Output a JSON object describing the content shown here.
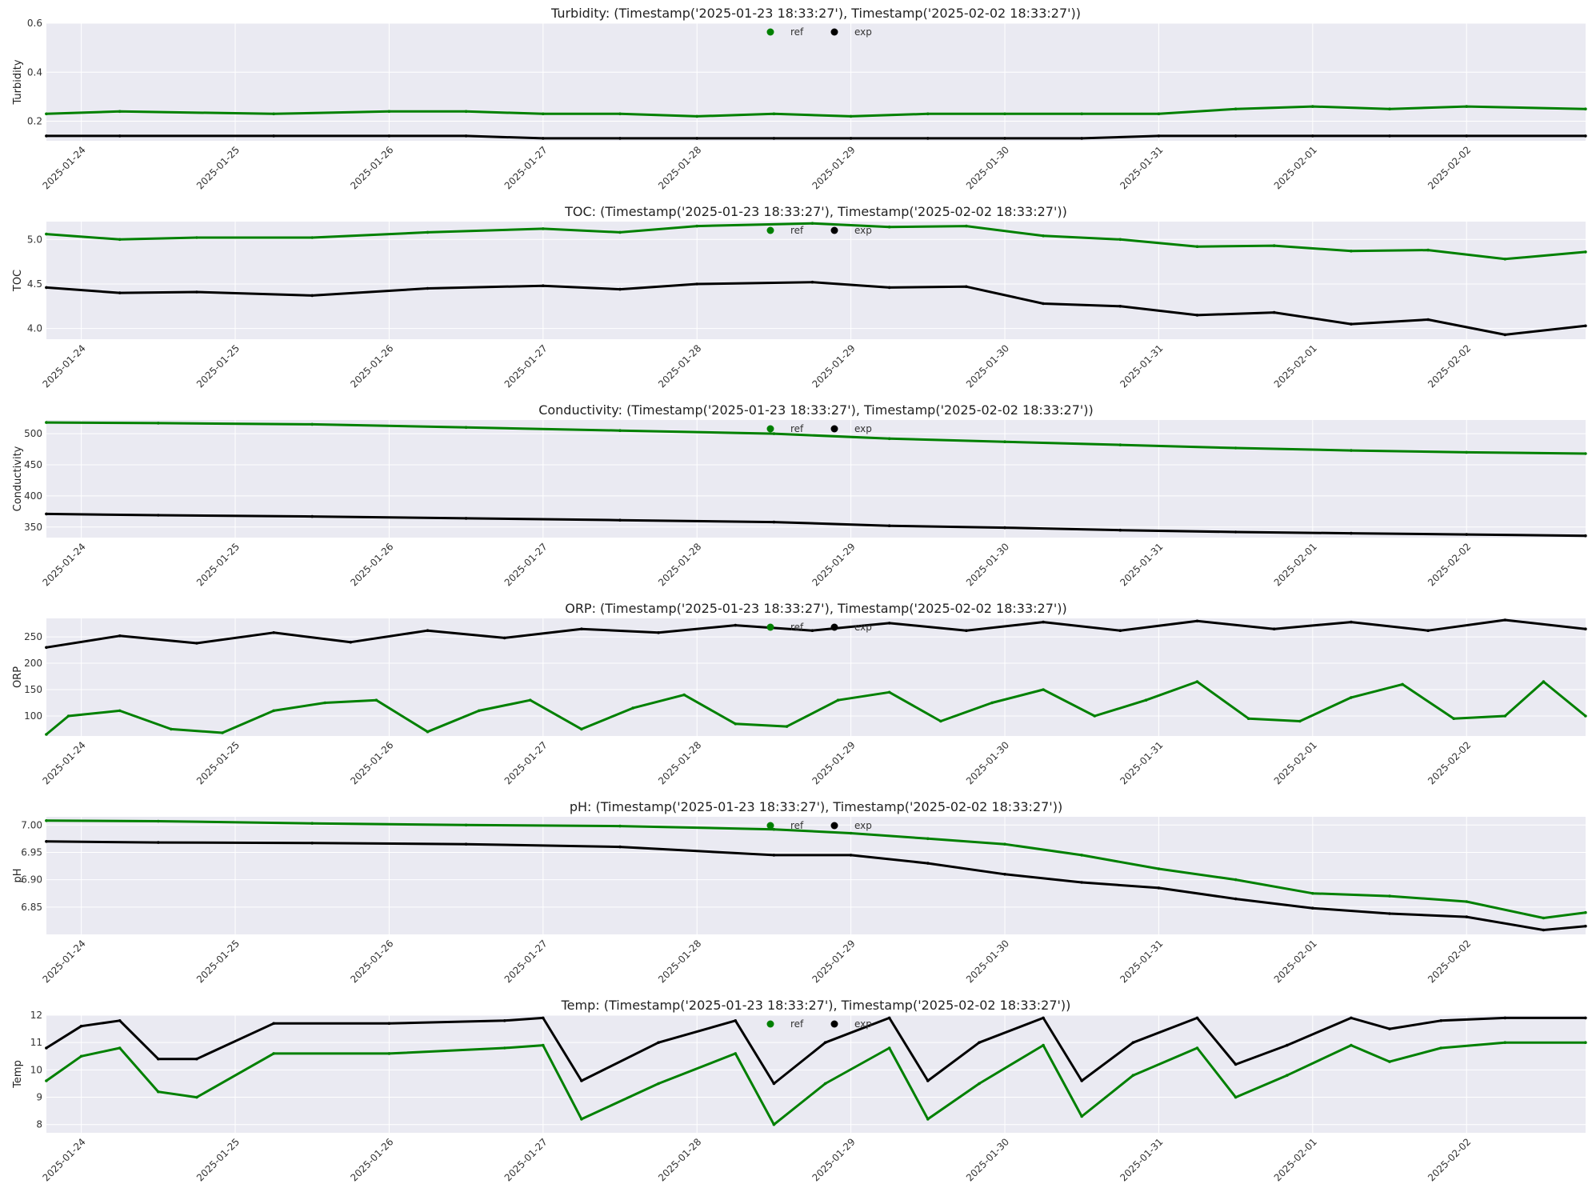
{
  "colors": {
    "ref": "#008000",
    "exp": "#000000",
    "plot_bg": "#eaeaf2",
    "grid": "#ffffff"
  },
  "x_ticks": [
    "2025-01-24",
    "2025-01-25",
    "2025-01-26",
    "2025-01-27",
    "2025-01-28",
    "2025-01-29",
    "2025-01-30",
    "2025-01-31",
    "2025-02-01",
    "2025-02-02"
  ],
  "chart_data": [
    {
      "type": "scatter",
      "title": "Turbidity: (Timestamp('2025-01-23 18:33:27'), Timestamp('2025-02-02 18:33:27'))",
      "ylabel": "Turbidity",
      "x_range": [
        "2025-01-23 18:33:27",
        "2025-02-02 18:33:27"
      ],
      "ylim": [
        0.12,
        0.6
      ],
      "yticks": [
        0.2,
        0.4,
        0.6
      ],
      "legend": "top-center",
      "series": [
        {
          "name": "ref",
          "x": [
            "2025-01-23 18:33",
            "2025-01-24 06:00",
            "2025-01-25 06:00",
            "2025-01-26 00:00",
            "2025-01-26 12:00",
            "2025-01-27 00:00",
            "2025-01-27 12:00",
            "2025-01-28 00:00",
            "2025-01-28 12:00",
            "2025-01-29 00:00",
            "2025-01-29 12:00",
            "2025-01-30 00:00",
            "2025-01-30 12:00",
            "2025-01-31 00:00",
            "2025-01-31 12:00",
            "2025-02-01 00:00",
            "2025-02-01 12:00",
            "2025-02-02 00:00",
            "2025-02-02 18:33"
          ],
          "y": [
            0.23,
            0.24,
            0.23,
            0.24,
            0.24,
            0.23,
            0.23,
            0.22,
            0.23,
            0.22,
            0.23,
            0.23,
            0.23,
            0.23,
            0.25,
            0.26,
            0.25,
            0.26,
            0.25
          ]
        },
        {
          "name": "exp",
          "x": [
            "2025-01-23 18:33",
            "2025-01-24 06:00",
            "2025-01-25 06:00",
            "2025-01-26 00:00",
            "2025-01-26 12:00",
            "2025-01-27 00:00",
            "2025-01-27 12:00",
            "2025-01-28 00:00",
            "2025-01-28 12:00",
            "2025-01-29 00:00",
            "2025-01-29 12:00",
            "2025-01-30 00:00",
            "2025-01-30 12:00",
            "2025-01-31 00:00",
            "2025-01-31 12:00",
            "2025-02-01 00:00",
            "2025-02-01 12:00",
            "2025-02-02 00:00",
            "2025-02-02 18:33"
          ],
          "y": [
            0.14,
            0.14,
            0.14,
            0.14,
            0.14,
            0.13,
            0.13,
            0.13,
            0.13,
            0.13,
            0.13,
            0.13,
            0.13,
            0.14,
            0.14,
            0.14,
            0.14,
            0.14,
            0.14
          ]
        }
      ]
    },
    {
      "type": "scatter",
      "title": "TOC: (Timestamp('2025-01-23 18:33:27'), Timestamp('2025-02-02 18:33:27'))",
      "ylabel": "TOC",
      "x_range": [
        "2025-01-23 18:33:27",
        "2025-02-02 18:33:27"
      ],
      "ylim": [
        3.88,
        5.2
      ],
      "yticks": [
        4.0,
        4.5,
        5.0
      ],
      "legend": "top-center",
      "series": [
        {
          "name": "ref",
          "x": [
            "2025-01-23 18:33",
            "2025-01-24 06:00",
            "2025-01-24 18:00",
            "2025-01-25 12:00",
            "2025-01-26 06:00",
            "2025-01-27 00:00",
            "2025-01-27 12:00",
            "2025-01-28 00:00",
            "2025-01-28 18:00",
            "2025-01-29 06:00",
            "2025-01-29 18:00",
            "2025-01-30 06:00",
            "2025-01-30 18:00",
            "2025-01-31 06:00",
            "2025-01-31 18:00",
            "2025-02-01 06:00",
            "2025-02-01 18:00",
            "2025-02-02 06:00",
            "2025-02-02 18:33"
          ],
          "y": [
            5.06,
            5.0,
            5.02,
            5.02,
            5.08,
            5.12,
            5.08,
            5.15,
            5.18,
            5.14,
            5.15,
            5.04,
            5.0,
            4.92,
            4.93,
            4.87,
            4.88,
            4.78,
            4.86
          ]
        },
        {
          "name": "exp",
          "x": [
            "2025-01-23 18:33",
            "2025-01-24 06:00",
            "2025-01-24 18:00",
            "2025-01-25 12:00",
            "2025-01-26 06:00",
            "2025-01-27 00:00",
            "2025-01-27 12:00",
            "2025-01-28 00:00",
            "2025-01-28 18:00",
            "2025-01-29 06:00",
            "2025-01-29 18:00",
            "2025-01-30 06:00",
            "2025-01-30 18:00",
            "2025-01-31 06:00",
            "2025-01-31 18:00",
            "2025-02-01 06:00",
            "2025-02-01 18:00",
            "2025-02-02 06:00",
            "2025-02-02 18:33"
          ],
          "y": [
            4.46,
            4.4,
            4.41,
            4.37,
            4.45,
            4.48,
            4.44,
            4.5,
            4.52,
            4.46,
            4.47,
            4.28,
            4.25,
            4.15,
            4.18,
            4.05,
            4.1,
            3.93,
            4.03
          ]
        }
      ]
    },
    {
      "type": "scatter",
      "title": "Conductivity: (Timestamp('2025-01-23 18:33:27'), Timestamp('2025-02-02 18:33:27'))",
      "ylabel": "Conductivity",
      "x_range": [
        "2025-01-23 18:33:27",
        "2025-02-02 18:33:27"
      ],
      "ylim": [
        333,
        522
      ],
      "yticks": [
        350,
        400,
        450,
        500
      ],
      "legend": "top-center",
      "series": [
        {
          "name": "ref",
          "x": [
            "2025-01-23 18:33",
            "2025-01-24 12:00",
            "2025-01-25 12:00",
            "2025-01-26 12:00",
            "2025-01-27 12:00",
            "2025-01-28 12:00",
            "2025-01-29 06:00",
            "2025-01-30 00:00",
            "2025-01-30 18:00",
            "2025-01-31 12:00",
            "2025-02-01 06:00",
            "2025-02-02 00:00",
            "2025-02-02 18:33"
          ],
          "y": [
            518,
            517,
            515,
            510,
            505,
            500,
            492,
            487,
            482,
            477,
            473,
            470,
            468
          ]
        },
        {
          "name": "exp",
          "x": [
            "2025-01-23 18:33",
            "2025-01-24 12:00",
            "2025-01-25 12:00",
            "2025-01-26 12:00",
            "2025-01-27 12:00",
            "2025-01-28 12:00",
            "2025-01-29 06:00",
            "2025-01-30 00:00",
            "2025-01-30 18:00",
            "2025-01-31 12:00",
            "2025-02-01 06:00",
            "2025-02-02 00:00",
            "2025-02-02 18:33"
          ],
          "y": [
            371,
            369,
            367,
            364,
            361,
            358,
            352,
            349,
            345,
            342,
            340,
            338,
            336
          ]
        }
      ]
    },
    {
      "type": "scatter",
      "title": "ORP: (Timestamp('2025-01-23 18:33:27'), Timestamp('2025-02-02 18:33:27'))",
      "ylabel": "ORP",
      "x_range": [
        "2025-01-23 18:33:27",
        "2025-02-02 18:33:27"
      ],
      "ylim": [
        62,
        285
      ],
      "yticks": [
        100,
        150,
        200,
        250
      ],
      "legend": "top-center",
      "series": [
        {
          "name": "ref",
          "x": [
            "2025-01-23 18:33",
            "2025-01-23 22:00",
            "2025-01-24 06:00",
            "2025-01-24 14:00",
            "2025-01-24 22:00",
            "2025-01-25 06:00",
            "2025-01-25 14:00",
            "2025-01-25 22:00",
            "2025-01-26 06:00",
            "2025-01-26 14:00",
            "2025-01-26 22:00",
            "2025-01-27 06:00",
            "2025-01-27 14:00",
            "2025-01-27 22:00",
            "2025-01-28 06:00",
            "2025-01-28 14:00",
            "2025-01-28 22:00",
            "2025-01-29 06:00",
            "2025-01-29 14:00",
            "2025-01-29 22:00",
            "2025-01-30 06:00",
            "2025-01-30 14:00",
            "2025-01-30 22:00",
            "2025-01-31 06:00",
            "2025-01-31 14:00",
            "2025-01-31 22:00",
            "2025-02-01 06:00",
            "2025-02-01 14:00",
            "2025-02-01 22:00",
            "2025-02-02 06:00",
            "2025-02-02 12:00",
            "2025-02-02 18:33"
          ],
          "y": [
            65,
            100,
            110,
            75,
            68,
            110,
            125,
            130,
            70,
            110,
            130,
            75,
            115,
            140,
            85,
            80,
            130,
            145,
            90,
            125,
            150,
            100,
            130,
            165,
            95,
            90,
            135,
            160,
            95,
            100,
            165,
            100
          ]
        },
        {
          "name": "exp",
          "x": [
            "2025-01-23 18:33",
            "2025-01-24 06:00",
            "2025-01-24 18:00",
            "2025-01-25 06:00",
            "2025-01-25 18:00",
            "2025-01-26 06:00",
            "2025-01-26 18:00",
            "2025-01-27 06:00",
            "2025-01-27 18:00",
            "2025-01-28 06:00",
            "2025-01-28 18:00",
            "2025-01-29 06:00",
            "2025-01-29 18:00",
            "2025-01-30 06:00",
            "2025-01-30 18:00",
            "2025-01-31 06:00",
            "2025-01-31 18:00",
            "2025-02-01 06:00",
            "2025-02-01 18:00",
            "2025-02-02 06:00",
            "2025-02-02 18:33"
          ],
          "y": [
            230,
            252,
            238,
            258,
            240,
            262,
            248,
            265,
            258,
            272,
            262,
            276,
            262,
            278,
            262,
            280,
            265,
            278,
            262,
            282,
            265
          ]
        }
      ]
    },
    {
      "type": "scatter",
      "title": "pH: (Timestamp('2025-01-23 18:33:27'), Timestamp('2025-02-02 18:33:27'))",
      "ylabel": "pH",
      "x_range": [
        "2025-01-23 18:33:27",
        "2025-02-02 18:33:27"
      ],
      "ylim": [
        6.8,
        7.015
      ],
      "yticks": [
        6.85,
        6.9,
        6.95,
        7.0
      ],
      "legend": "top-center",
      "series": [
        {
          "name": "ref",
          "x": [
            "2025-01-23 18:33",
            "2025-01-24 12:00",
            "2025-01-25 12:00",
            "2025-01-26 12:00",
            "2025-01-27 12:00",
            "2025-01-28 12:00",
            "2025-01-29 00:00",
            "2025-01-29 12:00",
            "2025-01-30 00:00",
            "2025-01-30 12:00",
            "2025-01-31 00:00",
            "2025-01-31 12:00",
            "2025-02-01 00:00",
            "2025-02-01 12:00",
            "2025-02-02 00:00",
            "2025-02-02 12:00",
            "2025-02-02 18:33"
          ],
          "y": [
            7.008,
            7.007,
            7.003,
            7.0,
            6.998,
            6.992,
            6.985,
            6.975,
            6.965,
            6.945,
            6.92,
            6.9,
            6.875,
            6.87,
            6.86,
            6.83,
            6.84
          ]
        },
        {
          "name": "exp",
          "x": [
            "2025-01-23 18:33",
            "2025-01-24 12:00",
            "2025-01-25 12:00",
            "2025-01-26 12:00",
            "2025-01-27 12:00",
            "2025-01-28 12:00",
            "2025-01-29 00:00",
            "2025-01-29 12:00",
            "2025-01-30 00:00",
            "2025-01-30 12:00",
            "2025-01-31 00:00",
            "2025-01-31 12:00",
            "2025-02-01 00:00",
            "2025-02-01 12:00",
            "2025-02-02 00:00",
            "2025-02-02 12:00",
            "2025-02-02 18:33"
          ],
          "y": [
            6.97,
            6.968,
            6.967,
            6.965,
            6.96,
            6.945,
            6.945,
            6.93,
            6.91,
            6.895,
            6.885,
            6.865,
            6.848,
            6.838,
            6.832,
            6.808,
            6.815
          ]
        }
      ]
    },
    {
      "type": "scatter",
      "title": "Temp: (Timestamp('2025-01-23 18:33:27'), Timestamp('2025-02-02 18:33:27'))",
      "ylabel": "Temp",
      "x_range": [
        "2025-01-23 18:33:27",
        "2025-02-02 18:33:27"
      ],
      "ylim": [
        7.7,
        12.0
      ],
      "yticks": [
        8,
        9,
        10,
        11,
        12
      ],
      "legend": "top-center",
      "series": [
        {
          "name": "ref",
          "x": [
            "2025-01-23 18:33",
            "2025-01-24 00:00",
            "2025-01-24 06:00",
            "2025-01-24 12:00",
            "2025-01-24 18:00",
            "2025-01-25 06:00",
            "2025-01-26 00:00",
            "2025-01-26 18:00",
            "2025-01-27 00:00",
            "2025-01-27 06:00",
            "2025-01-27 18:00",
            "2025-01-28 06:00",
            "2025-01-28 12:00",
            "2025-01-28 20:00",
            "2025-01-29 06:00",
            "2025-01-29 12:00",
            "2025-01-29 20:00",
            "2025-01-30 06:00",
            "2025-01-30 12:00",
            "2025-01-30 20:00",
            "2025-01-31 06:00",
            "2025-01-31 12:00",
            "2025-01-31 20:00",
            "2025-02-01 06:00",
            "2025-02-01 12:00",
            "2025-02-01 20:00",
            "2025-02-02 06:00",
            "2025-02-02 18:33"
          ],
          "y": [
            9.6,
            10.5,
            10.8,
            9.2,
            9.0,
            10.6,
            10.6,
            10.8,
            10.9,
            8.2,
            9.5,
            10.6,
            8.0,
            9.5,
            10.8,
            8.2,
            9.5,
            10.9,
            8.3,
            9.8,
            10.8,
            9.0,
            9.8,
            10.9,
            10.3,
            10.8,
            11.0,
            11.0
          ]
        },
        {
          "name": "exp",
          "x": [
            "2025-01-23 18:33",
            "2025-01-24 00:00",
            "2025-01-24 06:00",
            "2025-01-24 12:00",
            "2025-01-24 18:00",
            "2025-01-25 06:00",
            "2025-01-26 00:00",
            "2025-01-26 18:00",
            "2025-01-27 00:00",
            "2025-01-27 06:00",
            "2025-01-27 18:00",
            "2025-01-28 06:00",
            "2025-01-28 12:00",
            "2025-01-28 20:00",
            "2025-01-29 06:00",
            "2025-01-29 12:00",
            "2025-01-29 20:00",
            "2025-01-30 06:00",
            "2025-01-30 12:00",
            "2025-01-30 20:00",
            "2025-01-31 06:00",
            "2025-01-31 12:00",
            "2025-01-31 20:00",
            "2025-02-01 06:00",
            "2025-02-01 12:00",
            "2025-02-01 20:00",
            "2025-02-02 06:00",
            "2025-02-02 18:33"
          ],
          "y": [
            10.8,
            11.6,
            11.8,
            10.4,
            10.4,
            11.7,
            11.7,
            11.8,
            11.9,
            9.6,
            11.0,
            11.8,
            9.5,
            11.0,
            11.9,
            9.6,
            11.0,
            11.9,
            9.6,
            11.0,
            11.9,
            10.2,
            10.9,
            11.9,
            11.5,
            11.8,
            11.9,
            11.9
          ]
        }
      ]
    }
  ]
}
